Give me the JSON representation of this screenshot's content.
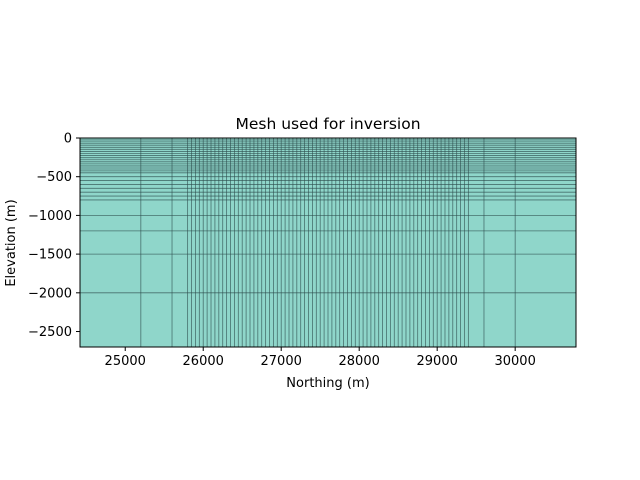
{
  "chart_data": {
    "type": "heatmap",
    "title": "Mesh used for inversion",
    "xlabel": "Northing (m)",
    "ylabel": "Elevation (m)",
    "xlim": [
      24420,
      30780
    ],
    "ylim": [
      -2700,
      0
    ],
    "grid": false,
    "fill_color": "#8fd6ca",
    "mesh_line_color": "#2f4f4f",
    "x_ticks": [
      {
        "value": 25000,
        "label": "25000"
      },
      {
        "value": 26000,
        "label": "26000"
      },
      {
        "value": 27000,
        "label": "27000"
      },
      {
        "value": 28000,
        "label": "28000"
      },
      {
        "value": 29000,
        "label": "29000"
      },
      {
        "value": 30000,
        "label": "30000"
      }
    ],
    "y_ticks": [
      {
        "value": 0,
        "label": "0"
      },
      {
        "value": -500,
        "label": "−500"
      },
      {
        "value": -1000,
        "label": "−1000"
      },
      {
        "value": -1500,
        "label": "−1500"
      },
      {
        "value": -2000,
        "label": "−2000"
      },
      {
        "value": -2500,
        "label": "−2500"
      }
    ],
    "mesh_x_lines": {
      "padding_left": [
        25200,
        25600,
        25800
      ],
      "core_start": 25800,
      "core_end": 29400,
      "core_spacing": 50,
      "padding_right": [
        29400,
        29600,
        30000
      ]
    },
    "mesh_z_lines": {
      "core_top": 0,
      "core_spacing": 25,
      "core_bottom": -450,
      "padding": [
        -500,
        -550,
        -600,
        -650,
        -700,
        -750,
        -800,
        -1000,
        -1200,
        -1500,
        -2000
      ]
    }
  }
}
